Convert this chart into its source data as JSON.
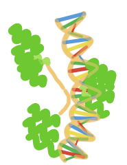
{
  "background_color": "#ffffff",
  "dna_backbone_color": "#f0c878",
  "base_colors_list": [
    "#4a8fd4",
    "#4aaa44",
    "#cc3322",
    "#e8d840"
  ],
  "helix_green": "#6ec832",
  "helix_green_light": "#a8e060",
  "helix_tan": "#e8c070",
  "figsize": [
    1.85,
    2.4
  ],
  "dpi": 100,
  "backbone_lw": 5.5,
  "base_lw": 4.0
}
